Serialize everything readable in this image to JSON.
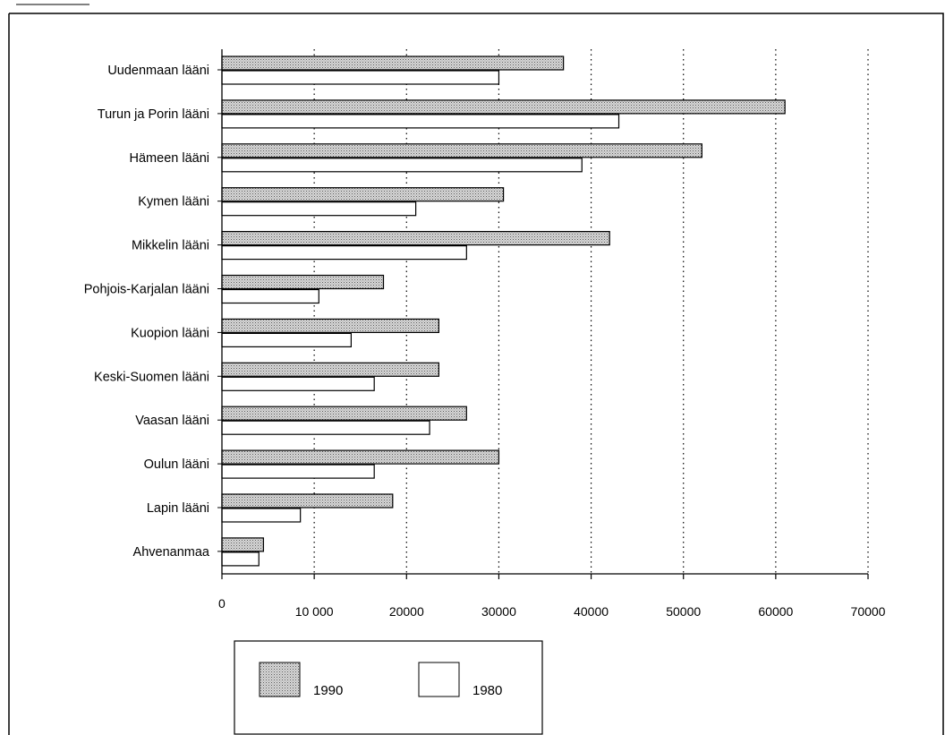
{
  "colors": {
    "series_1990_fill": "#cfcfcf",
    "series_1980_fill": "#ffffff",
    "stroke": "#000000"
  },
  "chart_data": {
    "type": "bar",
    "orientation": "horizontal",
    "categories": [
      "Uudenmaan lääni",
      "Turun ja Porin lääni",
      "Hämeen lääni",
      "Kymen lääni",
      "Mikkelin lääni",
      "Pohjois-Karjalan lääni",
      "Kuopion lääni",
      "Keski-Suomen lääni",
      "Vaasan lääni",
      "Oulun lääni",
      "Lapin lääni",
      "Ahvenanmaa"
    ],
    "series": [
      {
        "name": "1990",
        "pattern": "dotted-grey",
        "values": [
          37000,
          61000,
          52000,
          30500,
          42000,
          17500,
          23500,
          23500,
          26500,
          30000,
          18500,
          4500
        ]
      },
      {
        "name": "1980",
        "pattern": "white",
        "values": [
          30000,
          43000,
          39000,
          21000,
          26500,
          10500,
          14000,
          16500,
          22500,
          16500,
          8500,
          4000
        ]
      }
    ],
    "x_ticks": [
      "0",
      "10 000",
      "20000",
      "30000",
      "40000",
      "50000",
      "60000",
      "70000"
    ],
    "x_tick_values": [
      0,
      10000,
      20000,
      30000,
      40000,
      50000,
      60000,
      70000
    ],
    "xlim": [
      0,
      70000
    ],
    "title": "",
    "xlabel": "",
    "ylabel": "",
    "grid": "vertical-dotted",
    "legend_position": "bottom-left",
    "legend": [
      {
        "label": "1990",
        "pattern": "dotted-grey"
      },
      {
        "label": "1980",
        "pattern": "white"
      }
    ]
  }
}
